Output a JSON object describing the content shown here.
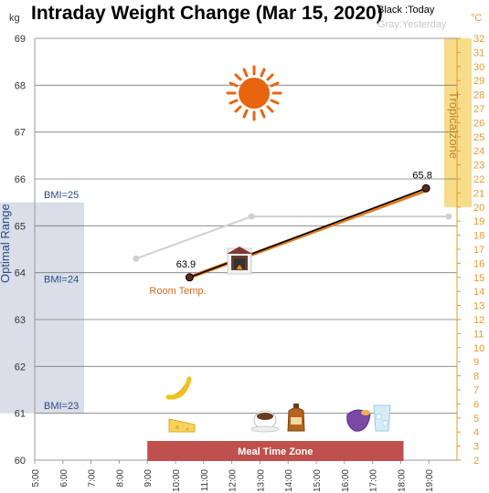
{
  "chart_data": {
    "type": "line",
    "title": "Intraday Weight Change (Mar 15, 2020)",
    "legend": {
      "today": "Black :Today",
      "yesterday": "Gray:Yesterday"
    },
    "y_left": {
      "unit": "kg",
      "min": 60,
      "max": 69,
      "ticks": [
        "60",
        "61",
        "62",
        "63",
        "64",
        "65",
        "66",
        "67",
        "68",
        "69"
      ]
    },
    "y_right": {
      "unit": "°C",
      "min": 2,
      "max": 32,
      "ticks": [
        "2",
        "3",
        "4",
        "5",
        "6",
        "7",
        "8",
        "9",
        "10",
        "11",
        "12",
        "13",
        "14",
        "15",
        "16",
        "17",
        "18",
        "19",
        "20",
        "21",
        "22",
        "23",
        "24",
        "25",
        "26",
        "27",
        "28",
        "29",
        "30",
        "31",
        "32"
      ]
    },
    "x": {
      "min": 5,
      "max": 20,
      "ticks": [
        "5:00",
        "6:00",
        "7:00",
        "8:00",
        "9:00",
        "10:00",
        "11:00",
        "12:00",
        "13:00",
        "14:00",
        "15:00",
        "16:00",
        "17:00",
        "18:00",
        "19:00"
      ]
    },
    "series": [
      {
        "name": "Today",
        "color": "#000000",
        "points": [
          {
            "x": 10.5,
            "y": 63.9
          },
          {
            "x": 18.9,
            "y": 65.8
          }
        ],
        "labels": [
          "63.9",
          "65.8"
        ]
      },
      {
        "name": "Yesterday",
        "color": "#d0d0d0",
        "points": [
          {
            "x": 8.6,
            "y": 64.3
          },
          {
            "x": 12.7,
            "y": 65.2
          },
          {
            "x": 19.7,
            "y": 65.2
          }
        ]
      }
    ],
    "room_temperature": {
      "label": "Room Temp.",
      "color": "#e07a1f",
      "from": {
        "x": 10.5,
        "y": 15
      },
      "to": {
        "x": 18.9,
        "y": 21.2
      }
    },
    "optimal_range": {
      "label": "Optimal Range",
      "from": 61,
      "to": 65.5,
      "bmi_labels": [
        {
          "text": "BMI=25",
          "y": 65.55
        },
        {
          "text": "BMI=24",
          "y": 63.75
        },
        {
          "text": "BMI=23",
          "y": 61.05
        }
      ]
    },
    "tropical_zone": {
      "label": "Tropicalzone",
      "from": 20,
      "to": 32
    },
    "meal_time_zone": {
      "label": "Meal Time Zone",
      "from": 9,
      "to": 18.1
    },
    "grid": true,
    "icons": [
      "sun-icon",
      "fireplace-icon",
      "banana-icon",
      "cheese-icon",
      "coffee-icon",
      "bottle-icon",
      "sweet-potato-icon",
      "water-glass-icon"
    ]
  }
}
